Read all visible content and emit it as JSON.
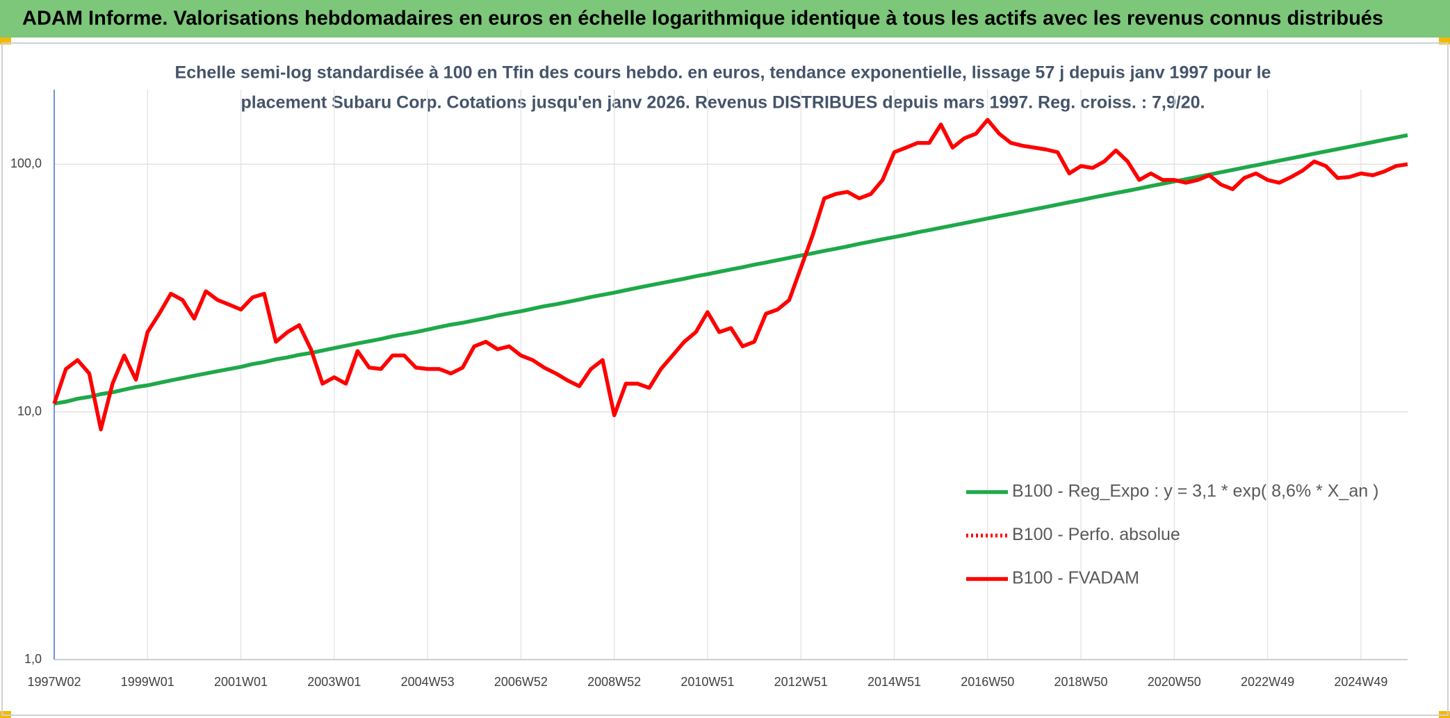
{
  "chart_data": {
    "type": "line",
    "title": "ADAM Informe. Valorisations hebdomadaires en euros en échelle logarithmique identique à tous les actifs avec les revenus connus distribués",
    "subtitle": [
      "Echelle semi-log standardisée à 100 en Tfin des cours hebdo. en euros, tendance exponentielle, lissage 57 j depuis janv 1997 pour le",
      "placement Subaru Corp. Cotations jusqu'en janv 2026. Revenus DISTRIBUES depuis mars 1997. Reg. croiss. : 7,9/20."
    ],
    "categories": [
      "1997W02",
      null,
      null,
      null,
      null,
      null,
      null,
      null,
      "1999W01",
      null,
      null,
      null,
      null,
      null,
      null,
      null,
      "2001W01",
      null,
      null,
      null,
      null,
      null,
      null,
      null,
      "2003W01",
      null,
      null,
      null,
      null,
      null,
      null,
      null,
      "2004W53",
      null,
      null,
      null,
      null,
      null,
      null,
      null,
      "2006W52",
      null,
      null,
      null,
      null,
      null,
      null,
      null,
      "2008W52",
      null,
      null,
      null,
      null,
      null,
      null,
      null,
      "2010W51",
      null,
      null,
      null,
      null,
      null,
      null,
      null,
      "2012W51",
      null,
      null,
      null,
      null,
      null,
      null,
      null,
      "2014W51",
      null,
      null,
      null,
      null,
      null,
      null,
      null,
      "2016W50",
      null,
      null,
      null,
      null,
      null,
      null,
      null,
      "2018W50",
      null,
      null,
      null,
      null,
      null,
      null,
      null,
      "2020W50",
      null,
      null,
      null,
      null,
      null,
      null,
      null,
      "2022W49",
      null,
      null,
      null,
      null,
      null,
      null,
      null,
      "2024W49",
      null,
      null,
      null,
      null
    ],
    "series": [
      {
        "name": "B100 - Reg_Expo : y = 3,1 * exp( 8,6% *  X_an )",
        "color": "#1fa84a",
        "dash": "solid",
        "values": [
          10.8,
          11.0,
          11.3,
          11.5,
          11.8,
          12.0,
          12.3,
          12.6,
          12.8,
          13.1,
          13.4,
          13.7,
          14.0,
          14.3,
          14.6,
          14.9,
          15.2,
          15.6,
          15.9,
          16.3,
          16.6,
          17.0,
          17.3,
          17.7,
          18.1,
          18.5,
          18.9,
          19.3,
          19.7,
          20.2,
          20.6,
          21.0,
          21.5,
          22.0,
          22.5,
          22.9,
          23.4,
          23.9,
          24.5,
          25.0,
          25.5,
          26.1,
          26.7,
          27.2,
          27.8,
          28.4,
          29.1,
          29.7,
          30.3,
          31.0,
          31.7,
          32.4,
          33.1,
          33.8,
          34.5,
          35.3,
          36.0,
          36.8,
          37.6,
          38.4,
          39.3,
          40.1,
          41.0,
          41.9,
          42.8,
          43.7,
          44.7,
          45.6,
          46.6,
          47.7,
          48.7,
          49.8,
          50.8,
          51.9,
          53.1,
          54.2,
          55.4,
          56.6,
          57.8,
          59.1,
          60.4,
          61.7,
          63.0,
          64.4,
          65.8,
          67.2,
          68.7,
          70.2,
          71.7,
          73.3,
          74.9,
          76.5,
          78.1,
          79.8,
          81.6,
          83.4,
          85.2,
          87.0,
          88.9,
          90.8,
          92.8,
          94.8,
          96.9,
          99.0,
          101.2,
          103.4,
          105.6,
          107.9,
          110.3,
          112.7,
          115.1,
          117.6,
          120.2,
          122.8,
          125.5,
          128.2,
          131.0
        ]
      },
      {
        "name": "B100 - Perfo. absolue",
        "color": "#ff0000",
        "dash": "dotted",
        "values": [
          null,
          null,
          null,
          null,
          null,
          null,
          null,
          null,
          null,
          null,
          null,
          null,
          null,
          null,
          null,
          null,
          null,
          null,
          null,
          null,
          null,
          null,
          null,
          null,
          null,
          null,
          null,
          null,
          null,
          null,
          null,
          null,
          null,
          null,
          null,
          null,
          null,
          null,
          null,
          null,
          null,
          null,
          null,
          null,
          null,
          null,
          null,
          null,
          null,
          null,
          null,
          null,
          null,
          null,
          null,
          null,
          null,
          null,
          null,
          null,
          null,
          null,
          null,
          null,
          null,
          null,
          null,
          null,
          null,
          null,
          null,
          null,
          null,
          null,
          null,
          null,
          null,
          null,
          null,
          null,
          null,
          null,
          null,
          null,
          null,
          null,
          null,
          null,
          null,
          null,
          null,
          null,
          null,
          null,
          null,
          null,
          null,
          null,
          null,
          null,
          null,
          null,
          null,
          null,
          null,
          null,
          null,
          null,
          null,
          null,
          null,
          null,
          null,
          null,
          null,
          null,
          null
        ]
      },
      {
        "name": "B100 - FVADAM",
        "color": "#ff0000",
        "dash": "solid",
        "values": [
          10.8,
          14.9,
          16.2,
          14.3,
          8.5,
          13.0,
          16.9,
          13.5,
          21.0,
          24.9,
          30.0,
          28.3,
          23.8,
          30.7,
          28.3,
          27.1,
          25.9,
          29.0,
          30.0,
          19.2,
          21.0,
          22.4,
          17.9,
          13.0,
          13.8,
          13.0,
          17.6,
          15.1,
          14.9,
          16.9,
          16.9,
          15.1,
          14.9,
          14.9,
          14.3,
          15.1,
          18.4,
          19.2,
          17.9,
          18.4,
          16.9,
          16.2,
          15.1,
          14.3,
          13.4,
          12.7,
          14.9,
          16.2,
          9.7,
          13.0,
          13.0,
          12.5,
          14.9,
          16.9,
          19.2,
          21.0,
          25.3,
          21.0,
          21.8,
          18.4,
          19.2,
          24.9,
          25.9,
          28.3,
          38.2,
          51.6,
          72.8,
          75.9,
          77.3,
          72.8,
          75.9,
          86.4,
          111.8,
          116.7,
          121.9,
          121.9,
          144.7,
          116.7,
          127.2,
          132.8,
          151.1,
          132.8,
          121.9,
          118.7,
          116.7,
          114.7,
          111.8,
          91.8,
          98.3,
          96.6,
          102.6,
          113.7,
          102.6,
          86.4,
          91.8,
          86.4,
          86.4,
          84.2,
          86.4,
          90.2,
          82.8,
          79.3,
          88.0,
          91.8,
          86.4,
          84.2,
          88.7,
          94.2,
          102.6,
          98.3,
          88.0,
          88.7,
          91.8,
          90.2,
          93.4,
          98.3,
          100
        ]
      }
    ],
    "log_scale": true,
    "grid": true,
    "ylim": [
      1,
      200
    ],
    "yticks": [
      {
        "value": 1,
        "label": "1,0"
      },
      {
        "value": 10,
        "label": "10,0"
      },
      {
        "value": 100,
        "label": "100,0"
      }
    ]
  }
}
